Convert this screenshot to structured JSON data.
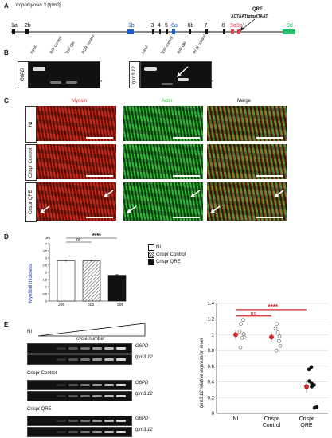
{
  "panelA": {
    "label": "A",
    "title": "tropomyosin 3 (tpm3)",
    "qre_title": "QRE",
    "qre_seq": "ACTAATtgtgatTAAT",
    "exons": [
      {
        "name": "1a",
        "color": "#111111"
      },
      {
        "name": "2b",
        "color": "#111111"
      },
      {
        "name": "1b",
        "color": "#1a5fd0"
      },
      {
        "name": "3",
        "color": "#111111"
      },
      {
        "name": "4",
        "color": "#111111"
      },
      {
        "name": "5",
        "color": "#111111"
      },
      {
        "name": "6a",
        "color": "#1a5fd0"
      },
      {
        "name": "6b",
        "color": "#111111"
      },
      {
        "name": "7",
        "color": "#111111"
      },
      {
        "name": "8",
        "color": "#111111"
      },
      {
        "name": "9a",
        "color": "#e0454f"
      },
      {
        "name": "9a'",
        "color": "#e0454f"
      },
      {
        "name": "9d",
        "color": "#1fbf6a"
      }
    ]
  },
  "panelB": {
    "label": "B",
    "gels": [
      {
        "gene": "G6PD",
        "lanes": [
          "Input",
          "RIP control",
          "RIP Qki",
          "PCR control"
        ],
        "star": "*"
      },
      {
        "gene": "tpm3.12",
        "lanes": [
          "Input",
          "RIP control",
          "RIP Qki",
          "PCR control"
        ],
        "star": "*"
      }
    ]
  },
  "panelC": {
    "label": "C",
    "columns": [
      "Myosin",
      "Actin",
      "Merge"
    ],
    "column_colors": [
      "#e0302a",
      "#33c23a",
      "#111111"
    ],
    "rows": [
      "NI",
      "Crispr Control",
      "Crispr QRE"
    ]
  },
  "panelD": {
    "label": "D",
    "unit": "µm",
    "ylabel": "Myofibril thickness",
    "ns": "ns",
    "sig": "****",
    "ns_label": "ns",
    "counts": [
      "296",
      "505",
      "598"
    ]
  },
  "panelE": {
    "label": "E",
    "gradient_ni": "NI",
    "cycle_label": "cycle number",
    "groups": [
      {
        "name": "NI",
        "genes": [
          "G6PD",
          "tpm3.12"
        ]
      },
      {
        "name": "Crispr Control",
        "genes": [
          "G6PD",
          "tpm3.12"
        ]
      },
      {
        "name": "Crispr QRE",
        "genes": [
          "G6PD",
          "tpm3.12"
        ]
      }
    ],
    "scatter_ylabel": "tpm3.12 relative expression level",
    "scatter_ns": "ns",
    "scatter_sig": "****"
  },
  "chart_data": [
    {
      "type": "bar",
      "categories": [
        "NI",
        "Crispr Control",
        "Crispr QRE"
      ],
      "values": [
        2.8,
        2.8,
        1.8
      ],
      "errors": [
        0.05,
        0.05,
        0.04
      ],
      "ylim": [
        0,
        4
      ],
      "yticks": [
        0,
        0.5,
        1,
        1.5,
        2,
        2.5,
        3,
        3.5,
        4
      ],
      "series": [
        {
          "name": "NI",
          "values": [
            2.8,
            null,
            null
          ]
        },
        {
          "name": "Crispr Control",
          "values": [
            null,
            2.8,
            null
          ]
        },
        {
          "name": "Crispr QRE",
          "values": [
            null,
            null,
            1.8
          ]
        }
      ]
    },
    {
      "type": "scatter",
      "categories": [
        "NI",
        "Crispr Control",
        "Crispr QRE"
      ],
      "ylim": [
        0,
        1.4
      ],
      "yticks": [
        0,
        0.2,
        0.4,
        0.6,
        0.8,
        1,
        1.2,
        1.4
      ],
      "means": [
        1.0,
        0.97,
        0.34
      ],
      "errors": [
        0.06,
        0.06,
        0.08
      ],
      "points": [
        [
          1.04,
          1.14,
          1.19,
          0.97,
          0.84,
          0.96,
          1.01
        ],
        [
          1.08,
          1.14,
          0.92,
          0.86,
          0.8,
          1.03,
          0.98
        ],
        [
          0.56,
          0.59,
          0.41,
          0.38,
          0.36,
          0.34,
          0.07,
          0.08
        ]
      ]
    }
  ]
}
